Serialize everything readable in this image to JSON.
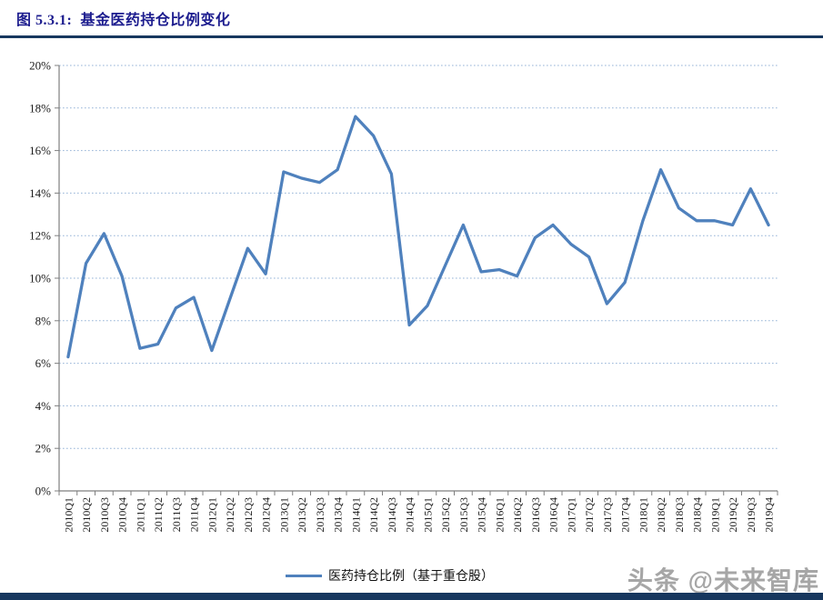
{
  "header": {
    "title": "图 5.3.1:  基金医药持仓比例变化"
  },
  "watermark": "头条 @未来智库",
  "colors": {
    "title_text": "#1c1c8e",
    "title_rule": "#17375E",
    "line": "#4F81BD",
    "gridline": "#95B3D7",
    "axis": "#7f7f7f",
    "tick_label": "#1a1a1a",
    "legend_text": "#111111",
    "watermark_text": "#a6a6a6",
    "bottom_bar": "#17375E"
  },
  "chart_data": {
    "type": "line",
    "title": "",
    "xlabel": "",
    "ylabel": "",
    "ylim": [
      0,
      20
    ],
    "ytick_step": 2,
    "ytick_suffix": "%",
    "grid": "horizontal dotted",
    "legend_position": "bottom-center",
    "categories": [
      "2010Q1",
      "2010Q2",
      "2010Q3",
      "2010Q4",
      "2011Q1",
      "2011Q2",
      "2011Q3",
      "2011Q4",
      "2012Q1",
      "2012Q2",
      "2012Q3",
      "2012Q4",
      "2013Q1",
      "2013Q2",
      "2013Q3",
      "2013Q4",
      "2014Q1",
      "2014Q2",
      "2014Q3",
      "2014Q4",
      "2015Q1",
      "2015Q2",
      "2015Q3",
      "2015Q4",
      "2016Q1",
      "2016Q2",
      "2016Q3",
      "2016Q4",
      "2017Q1",
      "2017Q2",
      "2017Q3",
      "2017Q4",
      "2018Q1",
      "2018Q2",
      "2018Q3",
      "2018Q4",
      "2019Q1",
      "2019Q2",
      "2019Q3",
      "2019Q4"
    ],
    "series": [
      {
        "name": "医药持仓比例（基于重仓股）",
        "values": [
          6.3,
          10.7,
          12.1,
          10.1,
          6.7,
          6.9,
          8.6,
          9.1,
          6.6,
          9.0,
          11.4,
          10.2,
          15.0,
          14.7,
          14.5,
          15.1,
          17.6,
          16.7,
          14.9,
          7.8,
          8.7,
          10.6,
          12.5,
          10.3,
          10.4,
          10.1,
          11.9,
          12.5,
          11.6,
          11.0,
          8.8,
          9.8,
          12.7,
          15.1,
          13.3,
          12.7,
          12.7,
          12.5,
          14.2,
          12.5
        ]
      }
    ]
  }
}
